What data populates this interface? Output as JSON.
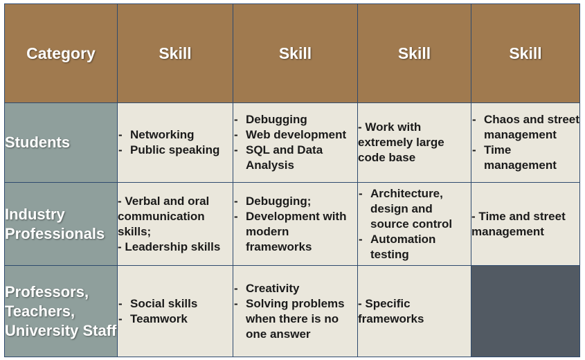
{
  "headers": {
    "category": "Category",
    "skills": [
      "Skill",
      "Skill",
      "Skill",
      "Skill"
    ]
  },
  "rows": [
    {
      "label": "Students",
      "cells": [
        {
          "type": "list",
          "items": [
            "Networking",
            "Public speaking"
          ]
        },
        {
          "type": "list",
          "items": [
            "Debugging",
            "Web development",
            "SQL and Data Analysis"
          ]
        },
        {
          "type": "text",
          "text": "- Work with extremely large code base"
        },
        {
          "type": "list",
          "items": [
            "Chaos and street management",
            "Time management"
          ]
        }
      ]
    },
    {
      "label": "Industry Professionals",
      "cells": [
        {
          "type": "text",
          "text": "- Verbal and oral communication skills;\n- Leadership skills"
        },
        {
          "type": "list",
          "items": [
            "Debugging;",
            "Development with modern frameworks"
          ]
        },
        {
          "type": "list",
          "items": [
            "Architecture, design and source control",
            "Automation testing"
          ]
        },
        {
          "type": "text",
          "text": "- Time and street management"
        }
      ]
    },
    {
      "label": "Professors, Teachers, University Staff",
      "cells": [
        {
          "type": "list",
          "items": [
            "Social skills",
            "Teamwork"
          ]
        },
        {
          "type": "list",
          "items": [
            "Creativity",
            "Solving problems when there is no one answer"
          ]
        },
        {
          "type": "text",
          "text": "- Specific frameworks"
        },
        {
          "type": "empty"
        }
      ]
    }
  ],
  "colors": {
    "header_bg": "#a07a4f",
    "rowhead_bg": "#8f9f9c",
    "cell_bg": "#eae7dc",
    "empty_bg": "#525a63",
    "border": "#2e4a6e"
  }
}
